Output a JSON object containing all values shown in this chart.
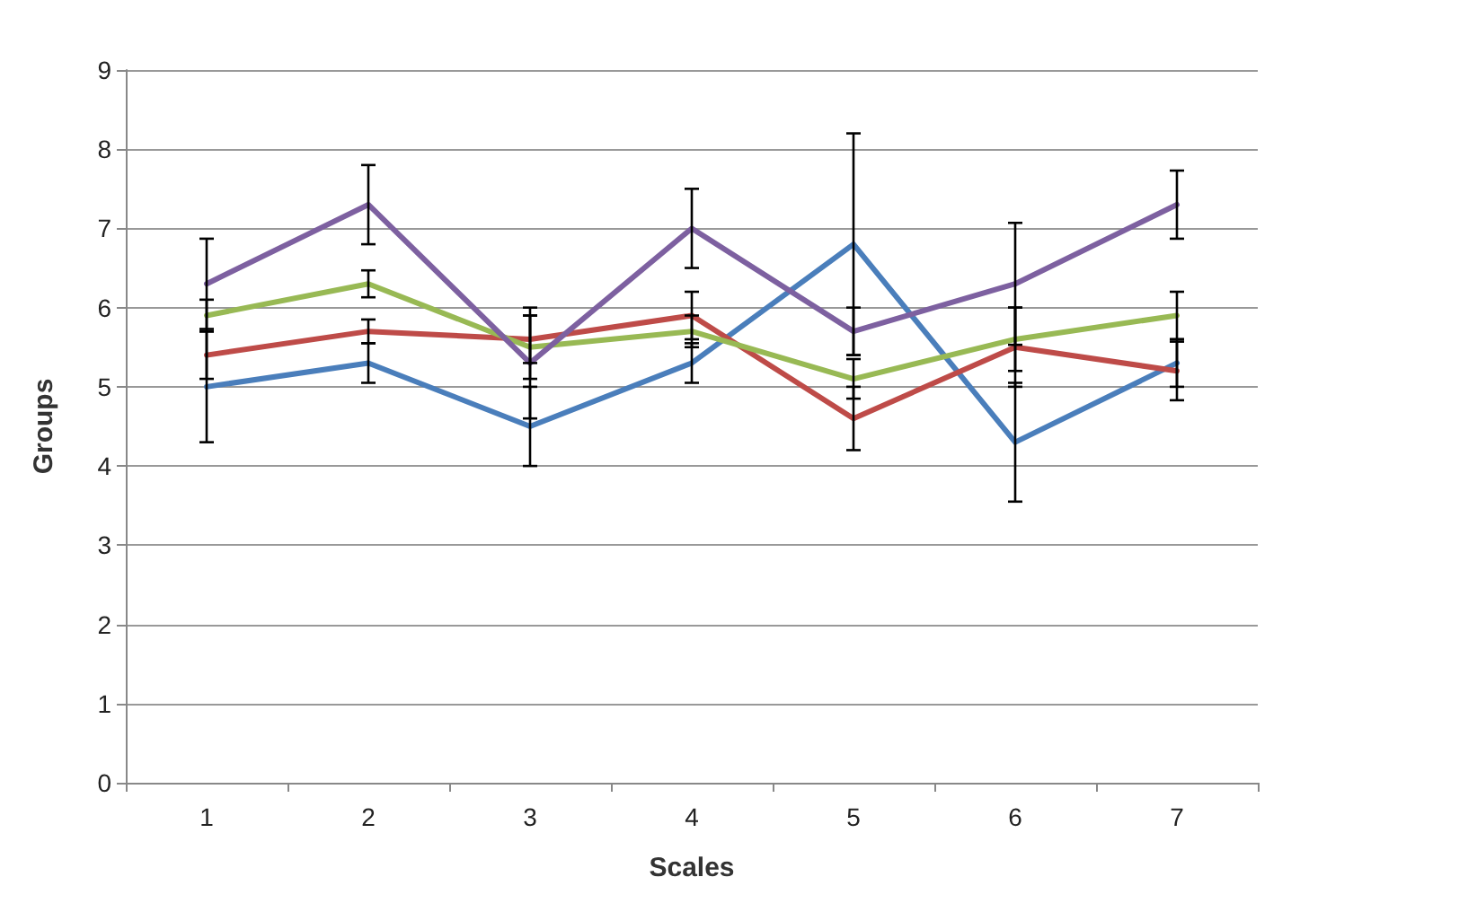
{
  "chart_data": {
    "type": "line",
    "xlabel": "Scales",
    "ylabel": "Groups",
    "categories": [
      "1",
      "2",
      "3",
      "4",
      "5",
      "6",
      "7"
    ],
    "series": [
      {
        "color": "#4a7ebb",
        "values": [
          5,
          5.3,
          4.5,
          5.3,
          6.8,
          4.3,
          5.3
        ],
        "errors": [
          0.7,
          0.25,
          0.5,
          0.25,
          1.4,
          0.75,
          0.3
        ]
      },
      {
        "color": "#be4b48",
        "values": [
          5.4,
          5.7,
          5.6,
          5.9,
          4.6,
          5.5,
          5.2
        ],
        "errors": [
          0.3,
          0.15,
          0.3,
          0.3,
          0.4,
          0.5,
          0.37
        ]
      },
      {
        "color": "#98b954",
        "values": [
          5.9,
          6.3,
          5.5,
          5.7,
          5.1,
          5.6,
          5.9
        ],
        "errors": [
          0.2,
          0.17,
          0.4,
          0.2,
          0.25,
          0.4,
          0.3
        ]
      },
      {
        "color": "#7d60a0",
        "values": [
          6.3,
          7.3,
          5.3,
          7.0,
          5.7,
          6.3,
          7.3
        ],
        "errors": [
          0.57,
          0.5,
          0.7,
          0.5,
          0.3,
          0.77,
          0.43
        ]
      }
    ],
    "ylim": [
      0,
      9
    ],
    "yticks": [
      0,
      1,
      2,
      3,
      4,
      5,
      6,
      7,
      8,
      9
    ],
    "grid": "y",
    "marker": "none",
    "line_style": "solid"
  }
}
